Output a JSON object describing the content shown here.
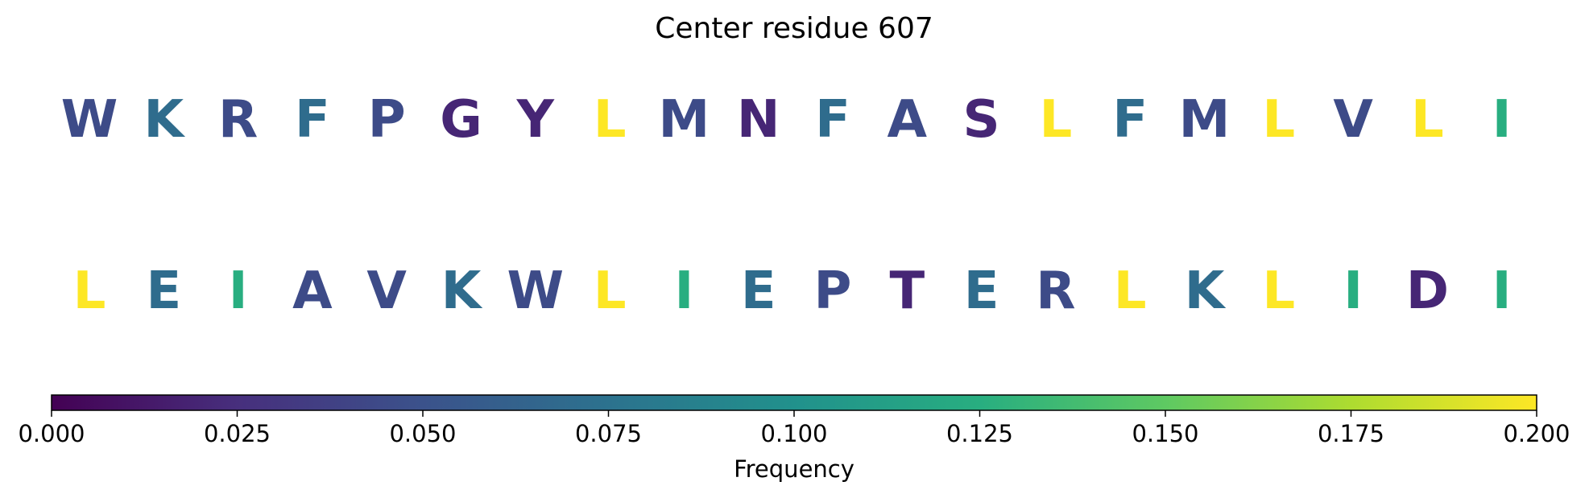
{
  "chart_data": {
    "type": "heatmap",
    "title": "Center residue 607",
    "rows": [
      {
        "residues": [
          "W",
          "K",
          "R",
          "F",
          "P",
          "G",
          "Y",
          "L",
          "M",
          "N",
          "F",
          "A",
          "S",
          "L",
          "F",
          "M",
          "L",
          "V",
          "L",
          "I"
        ],
        "values": [
          0.045,
          0.07,
          0.045,
          0.07,
          0.045,
          0.02,
          0.02,
          0.2,
          0.045,
          0.02,
          0.07,
          0.045,
          0.02,
          0.2,
          0.07,
          0.045,
          0.2,
          0.045,
          0.2,
          0.125
        ]
      },
      {
        "residues": [
          "L",
          "E",
          "I",
          "A",
          "V",
          "K",
          "W",
          "L",
          "I",
          "E",
          "P",
          "T",
          "E",
          "R",
          "L",
          "K",
          "L",
          "I",
          "D",
          "I"
        ],
        "values": [
          0.2,
          0.07,
          0.125,
          0.045,
          0.045,
          0.07,
          0.045,
          0.2,
          0.125,
          0.07,
          0.045,
          0.02,
          0.07,
          0.045,
          0.2,
          0.07,
          0.2,
          0.125,
          0.02,
          0.125
        ]
      }
    ],
    "colorbar": {
      "label": "Frequency",
      "colormap": "viridis",
      "range": [
        0.0,
        0.2
      ],
      "ticks": [
        "0.000",
        "0.025",
        "0.050",
        "0.075",
        "0.100",
        "0.125",
        "0.150",
        "0.175",
        "0.200"
      ]
    }
  }
}
